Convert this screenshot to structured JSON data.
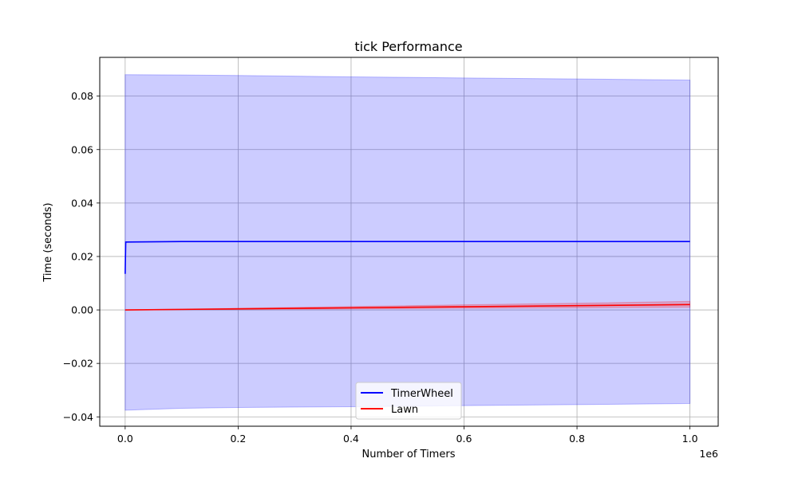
{
  "chart_data": {
    "type": "line",
    "title": "tick Performance",
    "xlabel": "Number of Timers",
    "ylabel": "Time (seconds)",
    "x_offset_label": "1e6",
    "xlim": [
      -0.045,
      1.05
    ],
    "ylim": [
      -0.0435,
      0.0945
    ],
    "x_ticks": [
      0.0,
      0.2,
      0.4,
      0.6,
      0.8,
      1.0
    ],
    "x_tick_labels": [
      "0.0",
      "0.2",
      "0.4",
      "0.6",
      "0.8",
      "1.0"
    ],
    "y_ticks": [
      -0.04,
      -0.02,
      0.0,
      0.02,
      0.04,
      0.06,
      0.08
    ],
    "y_tick_labels": [
      "−0.04",
      "−0.02",
      "0.00",
      "0.02",
      "0.04",
      "0.06",
      "0.08"
    ],
    "grid": true,
    "legend_position": "bottom-center",
    "series": [
      {
        "name": "TimerWheel",
        "color": "#0000ff",
        "band_color": "#0000ff",
        "x": [
          0.0,
          0.001,
          0.1,
          0.2,
          0.4,
          0.6,
          0.8,
          1.0
        ],
        "y": [
          0.0135,
          0.0254,
          0.0256,
          0.0256,
          0.0256,
          0.0256,
          0.0256,
          0.0256
        ],
        "upper": [
          0.088,
          0.088,
          0.0879,
          0.0877,
          0.0872,
          0.0868,
          0.0864,
          0.086
        ],
        "lower": [
          -0.0375,
          -0.0375,
          -0.0368,
          -0.0365,
          -0.0362,
          -0.0358,
          -0.0354,
          -0.035
        ]
      },
      {
        "name": "Lawn",
        "color": "#ff0000",
        "band_color": "#ff0000",
        "x": [
          0.0,
          0.2,
          0.4,
          0.6,
          0.8,
          1.0
        ],
        "y": [
          0.0,
          0.0004,
          0.0008,
          0.0012,
          0.0016,
          0.002
        ],
        "upper": [
          0.0,
          0.0006,
          0.0013,
          0.0019,
          0.0025,
          0.0032
        ],
        "lower": [
          0.0,
          0.0002,
          0.0004,
          0.0006,
          0.0008,
          0.001
        ]
      }
    ]
  }
}
